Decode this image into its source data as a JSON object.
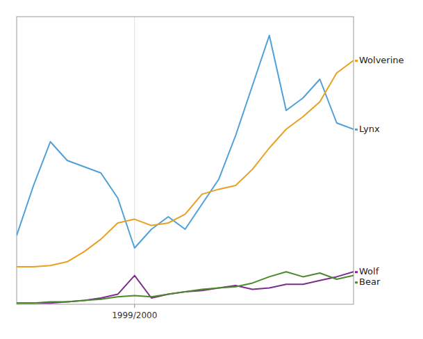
{
  "chart_data": {
    "type": "line",
    "categories": [
      null,
      null,
      null,
      null,
      null,
      null,
      null,
      "1999/2000",
      null,
      null,
      null,
      null,
      null,
      null,
      null,
      null,
      null,
      null,
      null,
      null,
      null
    ],
    "series": [
      {
        "name": "Lynx",
        "color": "#4FA0D8",
        "values": [
          55,
          95,
          130,
          115,
          110,
          105,
          85,
          45,
          60,
          70,
          60,
          80,
          100,
          135,
          175,
          215,
          155,
          165,
          180,
          145,
          140
        ]
      },
      {
        "name": "Wolverine",
        "color": "#E8A020",
        "values": [
          30,
          30,
          31,
          34,
          42,
          52,
          65,
          68,
          63,
          65,
          72,
          88,
          92,
          95,
          108,
          125,
          140,
          150,
          162,
          185,
          195
        ]
      },
      {
        "name": "Wolf",
        "color": "#7B2D8B",
        "values": [
          1,
          1,
          1,
          2,
          3,
          5,
          8,
          23,
          5,
          8,
          10,
          11,
          13,
          15,
          12,
          13,
          16,
          16,
          19,
          22,
          26
        ]
      },
      {
        "name": "Bear",
        "color": "#4A8A2A",
        "values": [
          1,
          1,
          2,
          2,
          3,
          4,
          6,
          7,
          6,
          8,
          10,
          12,
          13,
          14,
          17,
          22,
          26,
          22,
          25,
          20,
          23
        ]
      }
    ],
    "ylim": [
      0,
      230
    ],
    "grid": true,
    "tick_labels": "x"
  }
}
